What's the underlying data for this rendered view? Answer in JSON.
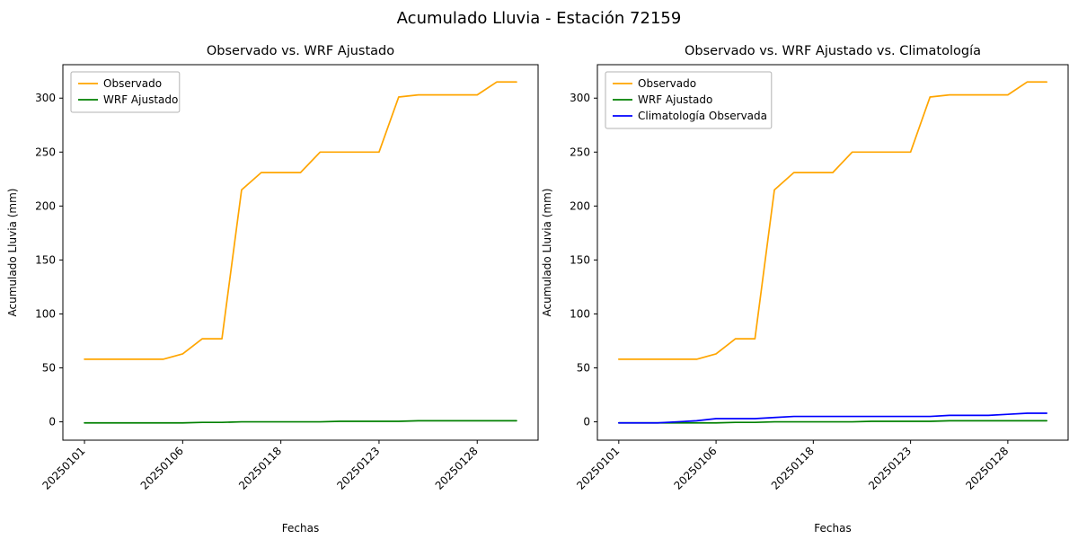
{
  "figure": {
    "title": "Acumulado Lluvia - Estación 72159"
  },
  "colors": {
    "observado": "#FFA500",
    "wrf": "#008000",
    "climatologia": "#0000FF",
    "axis": "#000000",
    "legend_border": "#b3b3b3"
  },
  "chart_data": [
    {
      "type": "line",
      "title": "Observado vs. WRF Ajustado",
      "xlabel": "Fechas",
      "ylabel": "Acumulado Lluvia (mm)",
      "legend_position": "upper left",
      "grid": false,
      "n_points": 23,
      "ylim": [
        -17,
        331
      ],
      "y_ticks": [
        0,
        50,
        100,
        150,
        200,
        250,
        300
      ],
      "x_tick_positions": [
        0,
        5,
        10,
        15,
        20
      ],
      "x_tick_labels": [
        "20250101",
        "20250106",
        "20250118",
        "20250123",
        "20250128"
      ],
      "series": [
        {
          "name": "Observado",
          "color": "#FFA500",
          "values": [
            58,
            58,
            58,
            58,
            58,
            63,
            77,
            77,
            215,
            231,
            231,
            231,
            250,
            250,
            250,
            250,
            301,
            303,
            303,
            303,
            303,
            315,
            315
          ]
        },
        {
          "name": "WRF Ajustado",
          "color": "#008000",
          "values": [
            -1,
            -1,
            -1,
            -1,
            -1,
            -1,
            -0.5,
            -0.5,
            0,
            0,
            0,
            0,
            0,
            0.5,
            0.5,
            0.5,
            0.5,
            1,
            1,
            1,
            1,
            1,
            1
          ]
        }
      ]
    },
    {
      "type": "line",
      "title": "Observado vs. WRF Ajustado vs. Climatología",
      "xlabel": "Fechas",
      "ylabel": "Acumulado Lluvia (mm)",
      "legend_position": "upper left",
      "grid": false,
      "n_points": 23,
      "ylim": [
        -17,
        331
      ],
      "y_ticks": [
        0,
        50,
        100,
        150,
        200,
        250,
        300
      ],
      "x_tick_positions": [
        0,
        5,
        10,
        15,
        20
      ],
      "x_tick_labels": [
        "20250101",
        "20250106",
        "20250118",
        "20250123",
        "20250128"
      ],
      "series": [
        {
          "name": "Observado",
          "color": "#FFA500",
          "values": [
            58,
            58,
            58,
            58,
            58,
            63,
            77,
            77,
            215,
            231,
            231,
            231,
            250,
            250,
            250,
            250,
            301,
            303,
            303,
            303,
            303,
            315,
            315
          ]
        },
        {
          "name": "WRF Ajustado",
          "color": "#008000",
          "values": [
            -1,
            -1,
            -1,
            -1,
            -1,
            -1,
            -0.5,
            -0.5,
            0,
            0,
            0,
            0,
            0,
            0.5,
            0.5,
            0.5,
            0.5,
            1,
            1,
            1,
            1,
            1,
            1
          ]
        },
        {
          "name": "Climatología Observada",
          "color": "#0000FF",
          "values": [
            -1,
            -1,
            -1,
            0,
            1,
            3,
            3,
            3,
            4,
            5,
            5,
            5,
            5,
            5,
            5,
            5,
            5,
            6,
            6,
            6,
            7,
            8,
            8
          ]
        }
      ]
    }
  ]
}
